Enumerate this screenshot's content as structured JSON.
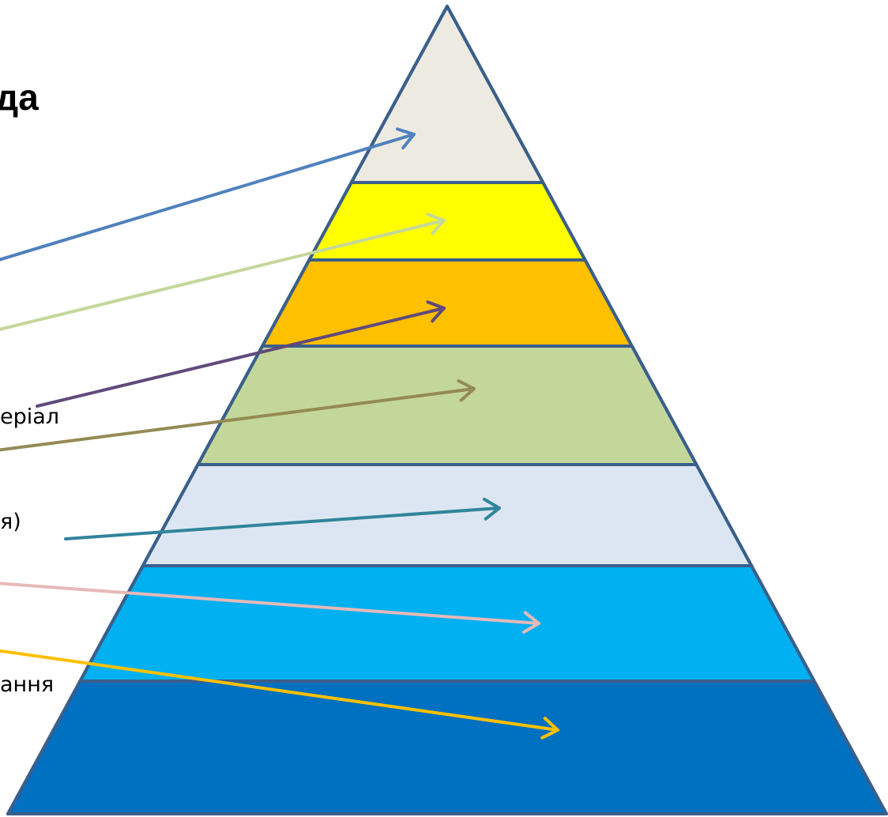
{
  "diagram": {
    "title_fragment": "да",
    "pyramid": {
      "outline_color": "#3A5F8A",
      "layers": [
        {
          "name": "layer-1",
          "color": "#EDEBE1"
        },
        {
          "name": "layer-2",
          "color": "#FFFF00"
        },
        {
          "name": "layer-3",
          "color": "#FFC000"
        },
        {
          "name": "layer-4",
          "color": "#C4D79B"
        },
        {
          "name": "layer-5",
          "color": "#DCE6F2"
        },
        {
          "name": "layer-6",
          "color": "#00B0F0"
        },
        {
          "name": "layer-7",
          "color": "#0070C0"
        }
      ]
    },
    "arrows": [
      {
        "name": "arrow-1",
        "color": "#4F81BD"
      },
      {
        "name": "arrow-2",
        "color": "#C4D79B"
      },
      {
        "name": "arrow-3",
        "color": "#604A7B"
      },
      {
        "name": "arrow-4",
        "color": "#948A54"
      },
      {
        "name": "arrow-5",
        "color": "#31849B"
      },
      {
        "name": "arrow-6",
        "color": "#E6B9B8"
      },
      {
        "name": "arrow-7",
        "color": "#FFC000"
      }
    ],
    "labels": {
      "label_3": "еріал",
      "label_5": "я)",
      "label_7": "ання"
    }
  }
}
